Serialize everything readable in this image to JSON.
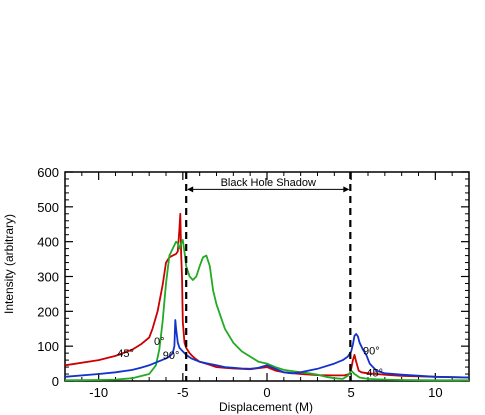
{
  "chart_data": {
    "type": "line",
    "xlabel": "Displacement (M)",
    "ylabel": "Intensity (arbitrary)",
    "xlim": [
      -12,
      12
    ],
    "ylim": [
      0,
      600
    ],
    "xticks": [
      -10,
      -5,
      0,
      5,
      10
    ],
    "xtick_labels": [
      "-10",
      "-5",
      "0",
      "5",
      "10"
    ],
    "yticks": [
      0,
      100,
      200,
      300,
      400,
      500,
      600
    ],
    "ytick_labels": [
      "0",
      "100",
      "200",
      "300",
      "400",
      "500",
      "600"
    ],
    "grid": false,
    "legend": "none",
    "series": [
      {
        "label": "45°",
        "color": "#cc0000",
        "x": [
          -12,
          -10,
          -9,
          -8,
          -7.5,
          -7,
          -6.8,
          -6.5,
          -6.2,
          -6.0,
          -5.8,
          -5.6,
          -5.4,
          -5.3,
          -5.2,
          -5.15,
          -5.1,
          -5.05,
          -5.0,
          -4.9,
          -4.8,
          -4.6,
          -4.4,
          -4.2,
          -4.0,
          -3.5,
          -3.0,
          -2.5,
          -2.0,
          -1.5,
          -1.0,
          0.0,
          0.5,
          1.0,
          2.0,
          3.0,
          4.0,
          4.6,
          4.9,
          5.0,
          5.1,
          5.2,
          5.3,
          5.45,
          5.6,
          6.0,
          7.0,
          8.0,
          10.0,
          12.0
        ],
        "y": [
          45,
          60,
          72,
          90,
          105,
          125,
          150,
          200,
          275,
          340,
          355,
          360,
          365,
          372,
          440,
          480,
          360,
          300,
          170,
          110,
          95,
          80,
          70,
          62,
          55,
          48,
          40,
          38,
          36,
          35,
          34,
          40,
          30,
          25,
          20,
          17,
          16,
          16,
          20,
          35,
          60,
          75,
          55,
          30,
          25,
          22,
          18,
          15,
          12,
          10
        ]
      },
      {
        "label": "0°",
        "color": "#22aa22",
        "x": [
          -12,
          -10,
          -9,
          -8,
          -7.0,
          -6.6,
          -6.4,
          -6.2,
          -6.0,
          -5.8,
          -5.6,
          -5.4,
          -5.3,
          -5.2,
          -5.1,
          -5.0,
          -4.9,
          -4.8,
          -4.6,
          -4.4,
          -4.2,
          -4.0,
          -3.8,
          -3.6,
          -3.4,
          -3.2,
          -3.0,
          -2.5,
          -2.0,
          -1.5,
          -1.0,
          -0.5,
          0.0,
          0.5,
          1.0,
          1.5,
          2.0,
          2.5,
          3.0,
          3.5,
          4.0,
          4.5,
          4.8,
          5.0,
          5.2,
          5.5,
          6.0,
          7.0,
          8.0,
          10.0,
          12.0
        ],
        "y": [
          2,
          3,
          4,
          8,
          20,
          45,
          90,
          170,
          280,
          360,
          380,
          400,
          395,
          380,
          395,
          405,
          370,
          330,
          300,
          290,
          300,
          330,
          355,
          360,
          330,
          260,
          220,
          150,
          110,
          85,
          70,
          55,
          50,
          40,
          32,
          28,
          25,
          22,
          18,
          12,
          8,
          6,
          15,
          30,
          20,
          10,
          6,
          4,
          3,
          2,
          2
        ]
      },
      {
        "label": "90°",
        "color": "#1133cc",
        "x": [
          -12,
          -10,
          -9,
          -8,
          -7.5,
          -7.0,
          -6.5,
          -6.0,
          -5.8,
          -5.6,
          -5.5,
          -5.45,
          -5.4,
          -5.3,
          -5.2,
          -5.0,
          -4.8,
          -4.5,
          -4.0,
          -3.5,
          -3.0,
          -2.5,
          -2.0,
          -1.5,
          -1.0,
          -0.5,
          0.0,
          0.5,
          1.0,
          1.5,
          2.0,
          3.0,
          4.0,
          4.5,
          4.8,
          5.0,
          5.1,
          5.2,
          5.3,
          5.4,
          5.5,
          5.6,
          5.7,
          5.9,
          6.1,
          6.5,
          7.0,
          8.0,
          10.0,
          12.0
        ],
        "y": [
          12,
          20,
          25,
          32,
          38,
          45,
          55,
          65,
          70,
          80,
          100,
          175,
          150,
          110,
          95,
          85,
          75,
          65,
          55,
          50,
          45,
          40,
          38,
          36,
          35,
          38,
          45,
          35,
          25,
          22,
          25,
          35,
          50,
          60,
          70,
          85,
          105,
          130,
          135,
          128,
          110,
          100,
          90,
          75,
          50,
          30,
          22,
          18,
          12,
          10
        ]
      }
    ],
    "annotations": {
      "shadow_label": "Black Hole Shadow",
      "shadow_range": [
        -4.8,
        4.95
      ],
      "labels": [
        {
          "text": "45°",
          "x": -8.4,
          "y": 80
        },
        {
          "text": "0°",
          "x": -6.4,
          "y": 115
        },
        {
          "text": "90°",
          "x": -5.7,
          "y": 75
        },
        {
          "text": "90°",
          "x": 6.2,
          "y": 88
        },
        {
          "text": "45°",
          "x": 6.4,
          "y": 25
        }
      ]
    }
  }
}
